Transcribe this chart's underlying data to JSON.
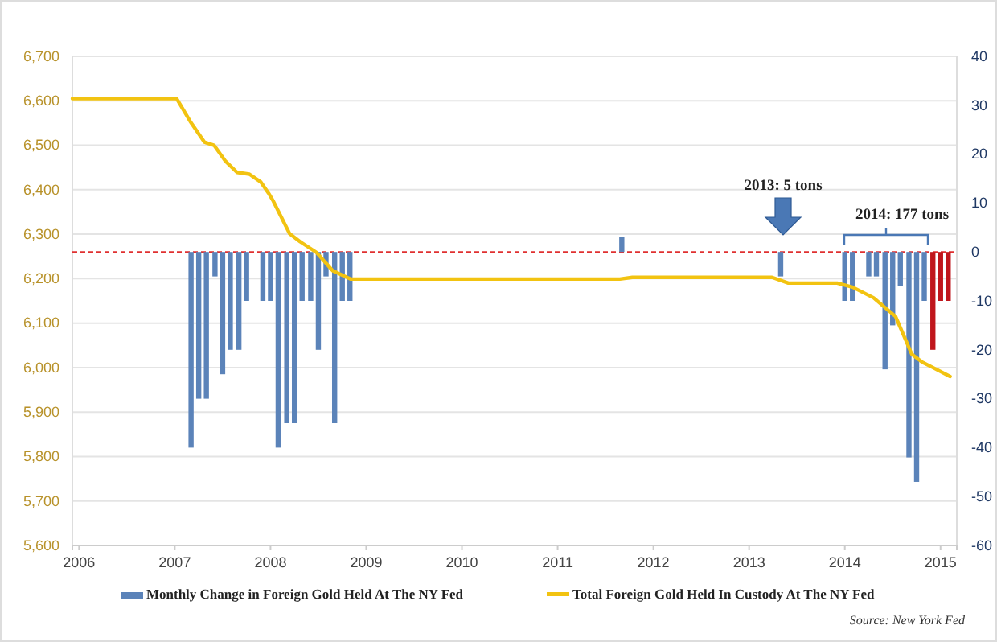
{
  "chart_data": {
    "type": "bar",
    "xlim": [
      2005.93,
      2015.17
    ],
    "xticks": [
      2006,
      2007,
      2008,
      2009,
      2010,
      2011,
      2012,
      2013,
      2014,
      2015
    ],
    "ylim": [
      5600,
      6700
    ],
    "yticks": [
      {
        "value": 5600,
        "label": "5,600"
      },
      {
        "value": 5700,
        "label": "5,700"
      },
      {
        "value": 5800,
        "label": "5,800"
      },
      {
        "value": 5900,
        "label": "5,900"
      },
      {
        "value": 6000,
        "label": "6,000"
      },
      {
        "value": 6100,
        "label": "6,100"
      },
      {
        "value": 6200,
        "label": "6,200"
      },
      {
        "value": 6300,
        "label": "6,300"
      },
      {
        "value": 6400,
        "label": "6,400"
      },
      {
        "value": 6500,
        "label": "6,500"
      },
      {
        "value": 6600,
        "label": "6,600"
      },
      {
        "value": 6700,
        "label": "6,700"
      }
    ],
    "y2lim": [
      -60,
      40
    ],
    "y2ticks": [
      -60,
      -50,
      -40,
      -30,
      -20,
      -10,
      0,
      10,
      20,
      30,
      40
    ],
    "grid": "y",
    "legend": "bottom",
    "marker": "none",
    "series": [
      {
        "name": "Monthly Change in Foreign Gold Held At The NY Fed",
        "axis": "y2",
        "color": "#5b83b9",
        "x": [
          2007.17,
          2007.25,
          2007.33,
          2007.42,
          2007.5,
          2007.58,
          2007.67,
          2007.75,
          2007.92,
          2008.0,
          2008.08,
          2008.17,
          2008.25,
          2008.33,
          2008.42,
          2008.5,
          2008.58,
          2008.67,
          2008.75,
          2008.83,
          2011.67,
          2013.33,
          2014.0,
          2014.08,
          2014.25,
          2014.33,
          2014.42,
          2014.5,
          2014.58,
          2014.67,
          2014.75,
          2014.83,
          2014.92,
          2015.0,
          2015.08
        ],
        "values": [
          -40,
          -30,
          -30,
          -5,
          -25,
          -20,
          -20,
          -10,
          -10,
          -10,
          -40,
          -35,
          -35,
          -10,
          -10,
          -20,
          -5,
          -35,
          -10,
          -10,
          3,
          -5,
          -10,
          -10,
          -5,
          -5,
          -24,
          -15,
          -7,
          -42,
          -47,
          -10,
          -20,
          -10,
          -10
        ],
        "colors": [
          "#5b83b9",
          "#5b83b9",
          "#5b83b9",
          "#5b83b9",
          "#5b83b9",
          "#5b83b9",
          "#5b83b9",
          "#5b83b9",
          "#5b83b9",
          "#5b83b9",
          "#5b83b9",
          "#5b83b9",
          "#5b83b9",
          "#5b83b9",
          "#5b83b9",
          "#5b83b9",
          "#5b83b9",
          "#5b83b9",
          "#5b83b9",
          "#5b83b9",
          "#5b83b9",
          "#5b83b9",
          "#5b83b9",
          "#5b83b9",
          "#5b83b9",
          "#5b83b9",
          "#5b83b9",
          "#5b83b9",
          "#5b83b9",
          "#5b83b9",
          "#5b83b9",
          "#5b83b9",
          "#c0161c",
          "#c0161c",
          "#c0161c"
        ]
      },
      {
        "name": "Total Foreign Gold Held In Custody At The NY Fed",
        "type": "line",
        "color": "#f2c311",
        "line_style": "solid",
        "x": [
          2005.93,
          2007.02,
          2007.16,
          2007.31,
          2007.41,
          2007.53,
          2007.65,
          2007.78,
          2007.9,
          2007.98,
          2008.03,
          2008.2,
          2008.31,
          2008.48,
          2008.65,
          2008.84,
          2011.65,
          2011.78,
          2013.24,
          2013.41,
          2013.92,
          2014.08,
          2014.3,
          2014.53,
          2014.7,
          2014.81,
          2014.92,
          2015.1
        ],
        "values": [
          6605,
          6605,
          6554,
          6507,
          6500,
          6464,
          6439,
          6435,
          6417,
          6392,
          6374,
          6301,
          6283,
          6259,
          6218,
          6199,
          6199,
          6203,
          6203,
          6190,
          6190,
          6181,
          6157,
          6115,
          6030,
          6012,
          6000,
          5980
        ]
      }
    ],
    "ref_lines": [
      {
        "axis": "y2",
        "value": 0,
        "color": "#e03030",
        "line_style": "dashed"
      }
    ],
    "annotations": [
      "2013: 5 tons",
      "2014: 177 tons",
      "Source: New York Fed"
    ]
  }
}
